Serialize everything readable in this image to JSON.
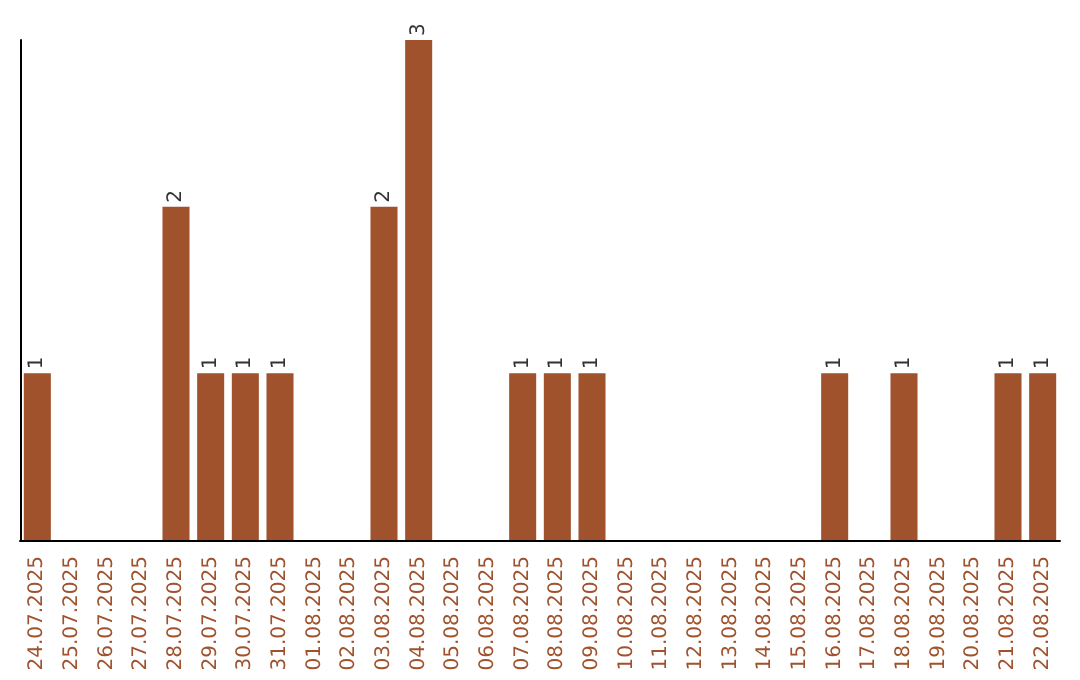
{
  "chart_data": {
    "type": "bar",
    "categories": [
      "24.07.2025",
      "25.07.2025",
      "26.07.2025",
      "27.07.2025",
      "28.07.2025",
      "29.07.2025",
      "30.07.2025",
      "31.07.2025",
      "01.08.2025",
      "02.08.2025",
      "03.08.2025",
      "04.08.2025",
      "05.08.2025",
      "06.08.2025",
      "07.08.2025",
      "08.08.2025",
      "09.08.2025",
      "10.08.2025",
      "11.08.2025",
      "12.08.2025",
      "13.08.2025",
      "14.08.2025",
      "15.08.2025",
      "16.08.2025",
      "17.08.2025",
      "18.08.2025",
      "19.08.2025",
      "20.08.2025",
      "21.08.2025",
      "22.08.2025"
    ],
    "values": [
      1,
      0,
      0,
      0,
      2,
      1,
      1,
      1,
      0,
      0,
      2,
      3,
      0,
      0,
      1,
      1,
      1,
      0,
      0,
      0,
      0,
      0,
      0,
      1,
      0,
      1,
      0,
      0,
      1,
      1
    ],
    "value_labels": [
      "1",
      null,
      null,
      null,
      "2",
      "1",
      "1",
      "1",
      null,
      null,
      "2",
      "3",
      null,
      null,
      "1",
      "1",
      "1",
      null,
      null,
      null,
      null,
      null,
      null,
      "1",
      null,
      "1",
      null,
      null,
      "1",
      "1"
    ],
    "color": "#a0522d",
    "tick_labels": "x"
  }
}
